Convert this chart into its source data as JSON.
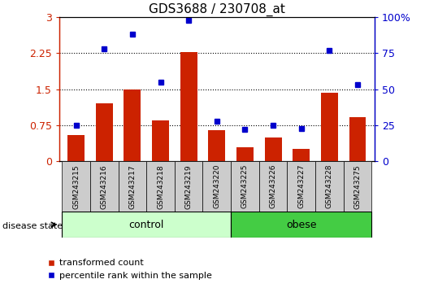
{
  "title": "GDS3688 / 230708_at",
  "samples": [
    "GSM243215",
    "GSM243216",
    "GSM243217",
    "GSM243218",
    "GSM243219",
    "GSM243220",
    "GSM243225",
    "GSM243226",
    "GSM243227",
    "GSM243228",
    "GSM243275"
  ],
  "red_values": [
    0.55,
    1.2,
    1.5,
    0.85,
    2.27,
    0.65,
    0.3,
    0.5,
    0.26,
    1.42,
    0.92
  ],
  "blue_values_pct": [
    25,
    78,
    88,
    55,
    98,
    28,
    22,
    25,
    23,
    77,
    53
  ],
  "ylim_left": [
    0,
    3
  ],
  "ylim_right": [
    0,
    100
  ],
  "yticks_left": [
    0,
    0.75,
    1.5,
    2.25,
    3
  ],
  "ytick_labels_left": [
    "0",
    "0.75",
    "1.5",
    "2.25",
    "3"
  ],
  "yticks_right": [
    0,
    25,
    50,
    75,
    100
  ],
  "ytick_labels_right": [
    "0",
    "25",
    "50",
    "75",
    "100%"
  ],
  "hlines": [
    0.75,
    1.5,
    2.25
  ],
  "bar_color": "#cc2200",
  "dot_color": "#0000cc",
  "control_label": "control",
  "obese_label": "obese",
  "control_indices": [
    0,
    1,
    2,
    3,
    4,
    5
  ],
  "obese_indices": [
    6,
    7,
    8,
    9,
    10
  ],
  "control_color": "#ccffcc",
  "obese_color": "#44cc44",
  "disease_state_label": "disease state",
  "legend_red": "transformed count",
  "legend_blue": "percentile rank within the sample",
  "gray_color": "#cccccc"
}
